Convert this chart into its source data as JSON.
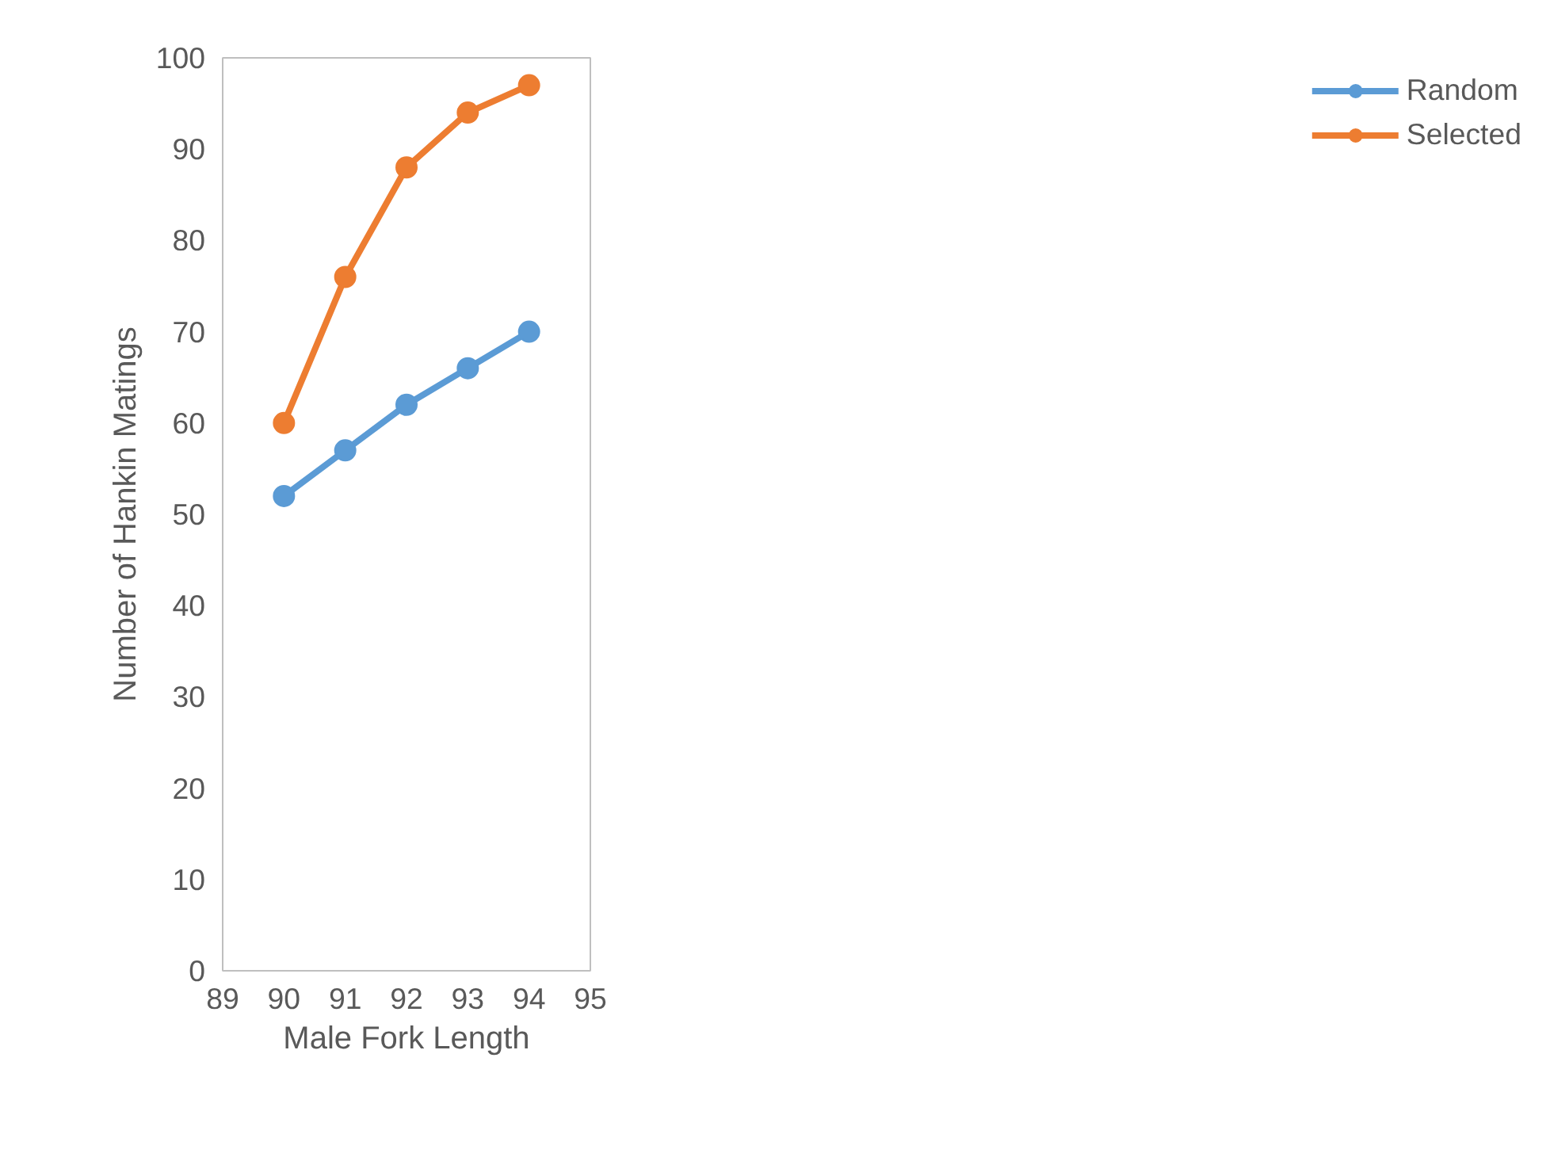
{
  "chart_data": {
    "type": "line",
    "xlabel": "Male Fork Length",
    "ylabel": "Number of Hankin Matings",
    "x": [
      90,
      91,
      92,
      93,
      94
    ],
    "series": [
      {
        "name": "Random",
        "color": "#5b9bd5",
        "values": [
          52,
          57,
          62,
          66,
          70
        ]
      },
      {
        "name": "Selected",
        "color": "#ed7d31",
        "values": [
          60,
          76,
          88,
          94,
          97
        ]
      }
    ],
    "xlim": [
      89,
      95
    ],
    "xticks": [
      89,
      90,
      91,
      92,
      93,
      94,
      95
    ],
    "ylim": [
      0,
      100
    ],
    "yticks": [
      0,
      10,
      20,
      30,
      40,
      50,
      60,
      70,
      80,
      90,
      100
    ],
    "grid": false,
    "legend": "right",
    "marker": "circle",
    "line_style": "solid"
  }
}
